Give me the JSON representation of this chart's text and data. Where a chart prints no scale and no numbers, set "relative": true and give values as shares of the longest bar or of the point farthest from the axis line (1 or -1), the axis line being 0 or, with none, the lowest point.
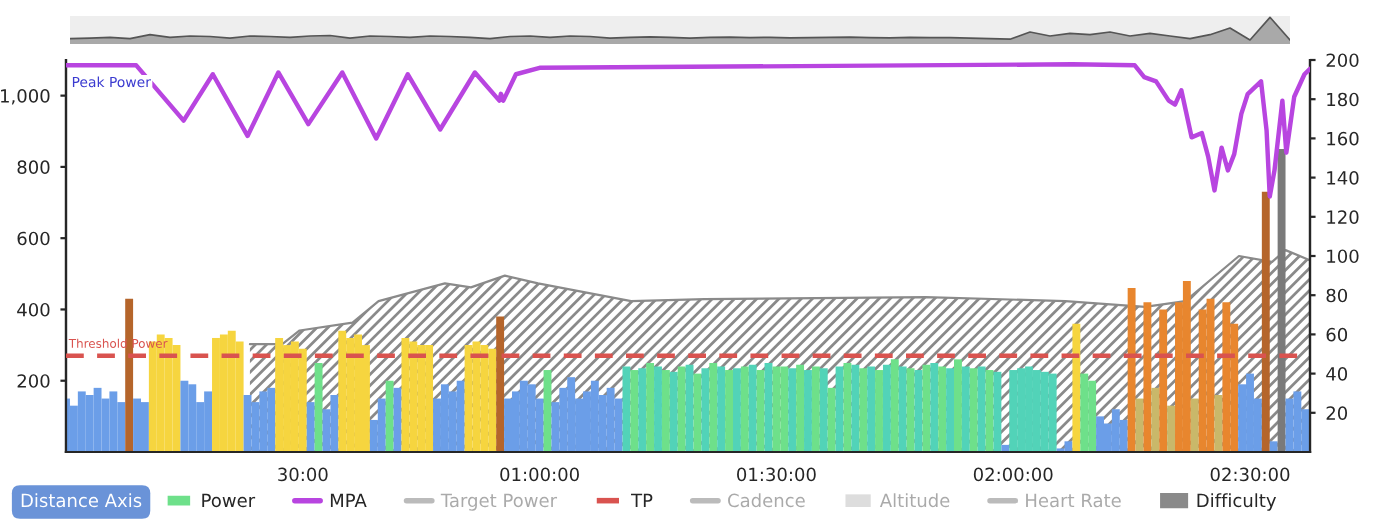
{
  "chart_data": [
    {
      "type": "area",
      "relative": true,
      "tick_labels": false,
      "categories": [
        null,
        null,
        null,
        null,
        null,
        null,
        null,
        null,
        null,
        null,
        null,
        null,
        null,
        null,
        null,
        null,
        null,
        null,
        null,
        null,
        null,
        null,
        null,
        null,
        null,
        null,
        null,
        null,
        null,
        null,
        null,
        null,
        null,
        null,
        null,
        null,
        null,
        null,
        null,
        null,
        null,
        null,
        null,
        null,
        null,
        null,
        null,
        null,
        null,
        null,
        null,
        null,
        null,
        null,
        null,
        null,
        null,
        null,
        null,
        null,
        null,
        null
      ],
      "series": [
        {
          "color": "#555555",
          "values": [
            0.2,
            0.22,
            0.25,
            0.2,
            0.35,
            0.25,
            0.3,
            0.28,
            0.22,
            0.3,
            0.28,
            0.25,
            0.3,
            0.32,
            0.22,
            0.3,
            0.28,
            0.25,
            0.3,
            0.28,
            0.25,
            0.2,
            0.28,
            0.3,
            0.25,
            0.3,
            0.28,
            0.22,
            0.25,
            0.27,
            0.25,
            0.22,
            0.25,
            0.26,
            0.24,
            0.25,
            0.23,
            0.24,
            0.25,
            0.26,
            0.24,
            0.23,
            0.25,
            0.24,
            0.24,
            0.22,
            0.2,
            0.18,
            0.45,
            0.3,
            0.4,
            0.35,
            0.45,
            0.3,
            0.4,
            0.3,
            0.2,
            0.35,
            0.6,
            0.15,
            1.0,
            0.15
          ]
        }
      ]
    },
    {
      "type": "bar",
      "xlim": [
        0,
        157.6
      ],
      "ylim": [
        0,
        1100
      ],
      "y2lim": [
        0,
        200
      ],
      "xticks": [
        {
          "value": 30,
          "label": "30:00"
        },
        {
          "value": 60,
          "label": "01:00:00"
        },
        {
          "value": 90,
          "label": "01:30:00"
        },
        {
          "value": 120,
          "label": "02:00:00"
        },
        {
          "value": 150,
          "label": "02:30:00"
        }
      ],
      "yticks": [
        200,
        400,
        600,
        800,
        {
          "value": 1000,
          "label": "1,000"
        }
      ],
      "y2ticks": [
        20,
        40,
        60,
        80,
        100,
        120,
        140,
        160,
        180,
        200
      ],
      "legend": "bottom",
      "grid": false,
      "annotations": [
        {
          "text": "Peak Power",
          "x": 0,
          "y": 1085
        },
        {
          "text": "Threshold Power",
          "x": 0,
          "y": 270
        },
        "Distance Axis"
      ],
      "series": [
        {
          "name": "Power",
          "type": "bar",
          "color": "#6ee08a",
          "x": [
            0,
            1,
            2,
            3,
            4,
            5,
            6,
            7,
            8,
            9,
            10,
            11,
            12,
            13,
            14,
            15,
            16,
            17,
            18,
            19,
            20,
            21,
            22,
            23,
            24,
            25,
            26,
            27,
            28,
            29,
            30,
            31,
            32,
            33,
            34,
            35,
            36,
            37,
            38,
            39,
            40,
            41,
            42,
            43,
            44,
            45,
            46,
            47,
            48,
            49,
            50,
            51,
            52,
            53,
            54,
            55,
            56,
            57,
            58,
            59,
            60,
            61,
            62,
            63,
            64,
            65,
            66,
            67,
            68,
            69,
            70,
            71,
            72,
            73,
            74,
            75,
            76,
            77,
            78,
            79,
            80,
            81,
            82,
            83,
            84,
            85,
            86,
            87,
            88,
            89,
            90,
            91,
            92,
            93,
            94,
            95,
            96,
            97,
            98,
            99,
            100,
            101,
            102,
            103,
            104,
            105,
            106,
            107,
            108,
            109,
            110,
            111,
            112,
            113,
            114,
            115,
            116,
            117,
            118,
            119,
            120,
            121,
            122,
            123,
            124,
            125,
            126,
            127,
            128,
            129,
            130,
            131,
            132,
            133,
            134,
            135,
            136,
            137,
            138,
            139,
            140,
            141,
            142,
            143,
            144,
            145,
            146,
            147,
            148,
            149,
            150,
            151,
            152,
            153,
            154,
            155,
            156,
            157
          ],
          "values": [
            150,
            130,
            170,
            160,
            180,
            150,
            170,
            140,
            430,
            150,
            140,
            310,
            330,
            320,
            300,
            200,
            190,
            140,
            170,
            320,
            330,
            340,
            310,
            160,
            140,
            170,
            180,
            320,
            300,
            310,
            290,
            140,
            250,
            120,
            160,
            340,
            320,
            330,
            300,
            90,
            150,
            200,
            180,
            320,
            310,
            300,
            300,
            150,
            190,
            170,
            200,
            300,
            310,
            300,
            290,
            380,
            150,
            170,
            200,
            190,
            150,
            230,
            140,
            180,
            210,
            150,
            170,
            200,
            160,
            180,
            150,
            240,
            230,
            235,
            250,
            240,
            230,
            225,
            240,
            245,
            220,
            235,
            250,
            240,
            230,
            235,
            240,
            245,
            230,
            250,
            240,
            240,
            235,
            245,
            230,
            240,
            235,
            180,
            240,
            250,
            245,
            235,
            240,
            230,
            245,
            260,
            240,
            235,
            230,
            245,
            250,
            240,
            235,
            260,
            240,
            235,
            240,
            230,
            225,
            20,
            230,
            235,
            240,
            230,
            225,
            220,
            10,
            30,
            360,
            220,
            200,
            100,
            80,
            120,
            90,
            460,
            150,
            420,
            180,
            400,
            130,
            420,
            480,
            150,
            400,
            430,
            160,
            420,
            360,
            190,
            220,
            150,
            730,
            30,
            850,
            150,
            170,
            120
          ],
          "colors": [
            "#6b9ee8",
            "#6b9ee8",
            "#6b9ee8",
            "#6b9ee8",
            "#6b9ee8",
            "#6b9ee8",
            "#6b9ee8",
            "#6b9ee8",
            "#b5652b",
            "#6b9ee8",
            "#6b9ee8",
            "#f6d53f",
            "#f6d53f",
            "#f6d53f",
            "#f6d53f",
            "#6b9ee8",
            "#6b9ee8",
            "#6b9ee8",
            "#6b9ee8",
            "#f6d53f",
            "#f6d53f",
            "#f6d53f",
            "#f6d53f",
            "#6b9ee8",
            "#6b9ee8",
            "#6b9ee8",
            "#6b9ee8",
            "#f6d53f",
            "#f6d53f",
            "#f6d53f",
            "#f6d53f",
            "#6b9ee8",
            "#6ee08a",
            "#6b9ee8",
            "#6b9ee8",
            "#f6d53f",
            "#f6d53f",
            "#f6d53f",
            "#f6d53f",
            "#6b9ee8",
            "#6b9ee8",
            "#6ee08a",
            "#6b9ee8",
            "#f6d53f",
            "#f6d53f",
            "#f6d53f",
            "#f6d53f",
            "#6b9ee8",
            "#6b9ee8",
            "#6b9ee8",
            "#6b9ee8",
            "#f6d53f",
            "#f6d53f",
            "#f6d53f",
            "#f6d53f",
            "#b5652b",
            "#6b9ee8",
            "#6b9ee8",
            "#6b9ee8",
            "#6b9ee8",
            "#6b9ee8",
            "#6ee08a",
            "#6b9ee8",
            "#6b9ee8",
            "#6b9ee8",
            "#6b9ee8",
            "#6b9ee8",
            "#6b9ee8",
            "#6b9ee8",
            "#6b9ee8",
            "#6b9ee8",
            "#52d3b8",
            "#6ee08a",
            "#52d3b8",
            "#6ee08a",
            "#52d3b8",
            "#6ee08a",
            "#52d3b8",
            "#6ee08a",
            "#52d3b8",
            "#6ee08a",
            "#52d3b8",
            "#6ee08a",
            "#52d3b8",
            "#6ee08a",
            "#52d3b8",
            "#6ee08a",
            "#52d3b8",
            "#6ee08a",
            "#52d3b8",
            "#6ee08a",
            "#6ee08a",
            "#52d3b8",
            "#6ee08a",
            "#52d3b8",
            "#6ee08a",
            "#52d3b8",
            "#6ee08a",
            "#52d3b8",
            "#6ee08a",
            "#52d3b8",
            "#6ee08a",
            "#52d3b8",
            "#6ee08a",
            "#52d3b8",
            "#6ee08a",
            "#52d3b8",
            "#6ee08a",
            "#52d3b8",
            "#6ee08a",
            "#52d3b8",
            "#6ee08a",
            "#52d3b8",
            "#6ee08a",
            "#52d3b8",
            "#6ee08a",
            "#52d3b8",
            "#6ee08a",
            "#52d3b8",
            "#6b9ee8",
            "#52d3b8",
            "#52d3b8",
            "#52d3b8",
            "#52d3b8",
            "#52d3b8",
            "#52d3b8",
            "#6b9ee8",
            "#6b9ee8",
            "#f6d53f",
            "#6ee08a",
            "#6ee08a",
            "#6b9ee8",
            "#6b9ee8",
            "#6b9ee8",
            "#6b9ee8",
            "#e8862e",
            "#c9b86a",
            "#e8862e",
            "#c9b86a",
            "#e8862e",
            "#c9b86a",
            "#e8862e",
            "#e8862e",
            "#c9b86a",
            "#e8862e",
            "#e8862e",
            "#c9b86a",
            "#e8862e",
            "#e8862e",
            "#6b9ee8",
            "#6b9ee8",
            "#6b9ee8",
            "#b5652b",
            "#6b9ee8",
            "#7a7a7a",
            "#6b9ee8",
            "#6b9ee8",
            "#6b9ee8"
          ]
        },
        {
          "name": "MPA",
          "type": "line",
          "color": "#b845e0",
          "x": [
            0,
            8.9,
            14.9,
            18.6,
            23,
            26.9,
            30.7,
            35,
            39.3,
            43.3,
            47.4,
            51.8,
            54.9,
            55.1,
            55.4,
            57,
            60,
            127.5,
            135.4,
            136.6,
            138.1,
            139.7,
            140.5,
            141.3,
            142.6,
            143.9,
            144.7,
            145.5,
            146.4,
            147.2,
            148,
            148.9,
            149.7,
            151.4,
            152.1,
            152.5,
            153.1,
            154.1,
            154.6,
            155.6,
            156.9,
            157.6
          ],
          "values": [
            1085,
            1085,
            930,
            1060,
            887,
            1065,
            920,
            1065,
            880,
            1060,
            905,
            1065,
            986,
            1005,
            986,
            1060,
            1078,
            1088,
            1085,
            1052,
            1040,
            986,
            975,
            1015,
            883,
            895,
            829,
            734,
            854,
            790,
            836,
            949,
            1004,
            1040,
            902,
            717,
            790,
            986,
            840,
            997,
            1060,
            1075
          ]
        },
        {
          "name": "Target Power",
          "type": "line",
          "color": "#bbbbbb"
        },
        {
          "name": "TP",
          "type": "line",
          "line_style": "dashed",
          "color": "#d9534f",
          "x": [
            0,
            157.6
          ],
          "values": [
            270,
            270
          ]
        },
        {
          "name": "Cadence",
          "type": "line",
          "color": "#bbbbbb"
        },
        {
          "name": "Altitude",
          "type": "area",
          "color": "#dddddd"
        },
        {
          "name": "Heart Rate",
          "type": "line",
          "color": "#bbbbbb"
        },
        {
          "name": "Difficulty",
          "type": "area",
          "axis": "y2",
          "color": "#8a8a8a",
          "x": [
            23.3,
            27.4,
            29.6,
            36.3,
            39.6,
            48,
            51.3,
            55.6,
            59.8,
            71.6,
            80.9,
            108.9,
            126.6,
            136.7,
            141.8,
            148.6,
            152.8,
            154.5,
            157.5
          ],
          "values": [
            55,
            55,
            62,
            66,
            77,
            86,
            84,
            90,
            86,
            77,
            78,
            79,
            77,
            74,
            77,
            100,
            97,
            103,
            98
          ]
        }
      ]
    }
  ]
}
